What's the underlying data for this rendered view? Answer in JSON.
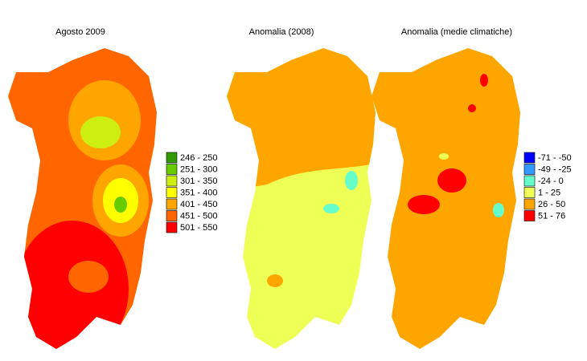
{
  "panels": [
    {
      "title": "Agosto 2009"
    },
    {
      "title": "Anomalia (2008)"
    },
    {
      "title": "Anomalia (medie climatiche)"
    }
  ],
  "legends": [
    {
      "items": [
        {
          "label": "246 - 250",
          "color": "#339900"
        },
        {
          "label": "251 - 300",
          "color": "#66cc00"
        },
        {
          "label": "301 - 350",
          "color": "#ccee11"
        },
        {
          "label": "351 - 400",
          "color": "#ffff00"
        },
        {
          "label": "401 - 450",
          "color": "#ffa500"
        },
        {
          "label": "451 - 500",
          "color": "#ff6600"
        },
        {
          "label": "501 - 550",
          "color": "#ff0000"
        }
      ]
    },
    {
      "items": [
        {
          "label": "-71 - -50",
          "color": "#0000ff"
        },
        {
          "label": "-49 - -25",
          "color": "#3399ff"
        },
        {
          "label": "-24 - 0",
          "color": "#66ffcc"
        },
        {
          "label": "1 - 25",
          "color": "#eeff55"
        },
        {
          "label": "26 - 50",
          "color": "#ffa500"
        },
        {
          "label": "51 - 76",
          "color": "#ff0000"
        }
      ]
    }
  ]
}
